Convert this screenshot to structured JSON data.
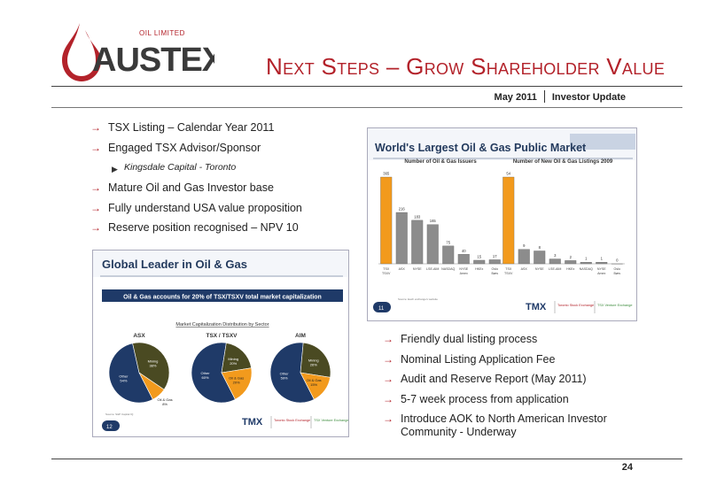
{
  "logo": {
    "name": "AUSTEX",
    "tagline": "OIL LIMITED"
  },
  "title": "Next Steps – Grow Shareholder Value",
  "header": {
    "date": "May 2011",
    "doc": "Investor Update"
  },
  "bullets_top": [
    {
      "text": "TSX Listing – Calendar Year 2011",
      "sub": false
    },
    {
      "text": "Engaged TSX Advisor/Sponsor",
      "sub": false
    },
    {
      "text": "Kingsdale Capital - Toronto",
      "sub": true
    },
    {
      "text": "Mature Oil and Gas Investor base",
      "sub": false
    },
    {
      "text": "Fully understand USA value proposition",
      "sub": false
    },
    {
      "text": "Reserve position recognised – NPV 10",
      "sub": false
    }
  ],
  "bullets_bottom": [
    "Friendly dual listing process",
    "Nominal Listing Application Fee",
    "Audit and Reserve Report (May 2011)",
    "5-7 week process from application",
    "Introduce AOK to North American Investor Community - Underway"
  ],
  "icons": {
    "bullet": "arrow-right-icon",
    "sub_bullet": "triangle-right-icon"
  },
  "colors": {
    "accent": "#b3222a",
    "navy": "#1f3a68",
    "orange": "#f29a1d",
    "gray": "#8c8c8c",
    "olive": "#4a4a22"
  },
  "panel_market": {
    "title": "World's Largest Oil & Gas Public Market",
    "slide_no": "11",
    "source": "Source: Each exchange's website",
    "tmx": {
      "brand": "TMX",
      "tse": "Toronto Stock Exchange",
      "tsxv": "TSX Venture Exchange"
    }
  },
  "panel_leader": {
    "title": "Global Leader in Oil & Gas",
    "banner": "Oil & Gas accounts for 20% of TSX/TSXV total market capitalization",
    "subtitle": "Market Capitalization Distribution by Sector",
    "slide_no": "12",
    "source": "Source: S&P Capital IQ",
    "tmx": {
      "brand": "TMX",
      "tse": "Toronto Stock Exchange",
      "tsxv": "TSX Venture Exchange"
    }
  },
  "chart_data": [
    {
      "type": "bar",
      "title": "Number of Oil & Gas Issuers",
      "categories": [
        "TSX TSXV",
        "ASX",
        "NYSE",
        "LSE-AIM",
        "NASDAQ",
        "NYSE Amex",
        "HKEx",
        "Oslo Børs"
      ],
      "values": [
        365,
        216,
        183,
        165,
        75,
        40,
        15,
        17
      ],
      "highlight_index": 0
    },
    {
      "type": "bar",
      "title": "Number of New Oil & Gas Listings 2009",
      "categories": [
        "TSX TSXV",
        "ASX",
        "NYSE",
        "LSE-AIM",
        "HKEx",
        "NASDAQ",
        "NYSE Amex",
        "Oslo Børs"
      ],
      "values": [
        54,
        9,
        8,
        3,
        2,
        1,
        1,
        0
      ],
      "highlight_index": 0
    },
    {
      "type": "pie",
      "title": "ASX",
      "series": [
        {
          "name": "Other",
          "label": "54%",
          "value": 54
        },
        {
          "name": "Mining",
          "label": "38%",
          "value": 38
        },
        {
          "name": "Oil & Gas",
          "label": "8%",
          "value": 8
        }
      ]
    },
    {
      "type": "pie",
      "title": "TSX / TSXV",
      "series": [
        {
          "name": "Other",
          "label": "60%",
          "value": 60
        },
        {
          "name": "Mining",
          "label": "20%",
          "value": 20
        },
        {
          "name": "Oil & Gas",
          "label": "20%",
          "value": 20
        }
      ]
    },
    {
      "type": "pie",
      "title": "AIM",
      "series": [
        {
          "name": "Other",
          "label": "59%",
          "value": 59
        },
        {
          "name": "Mining",
          "label": "26%",
          "value": 26
        },
        {
          "name": "Oil & Gas",
          "label": "15%",
          "value": 15
        }
      ]
    }
  ],
  "page_number": "24"
}
